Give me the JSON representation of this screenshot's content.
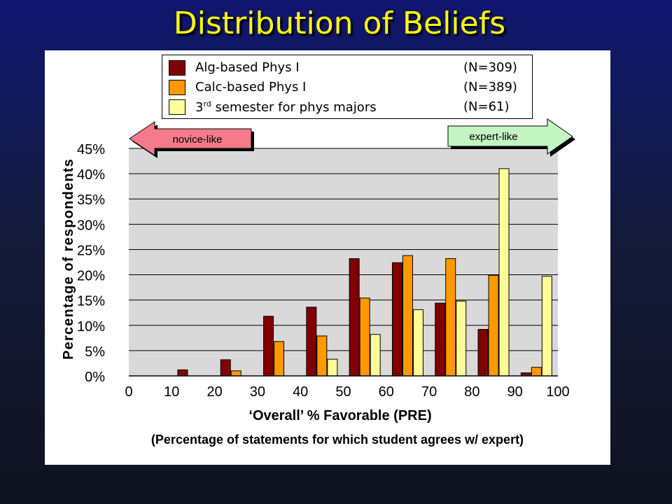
{
  "slide_title": "Distribution of Beliefs",
  "arrows": {
    "left_label": "novice-like",
    "right_label": "expert-like",
    "left_color": "#f57b8a",
    "right_color": "#c3f5c3"
  },
  "legend": [
    {
      "label_main": "Alg-based Phys I",
      "label_sup": "",
      "label_rest": "",
      "n": "(N=309)",
      "color": "#800000"
    },
    {
      "label_main": "Calc-based Phys I",
      "label_sup": "",
      "label_rest": "",
      "n": "(N=389)",
      "color": "#ff9900"
    },
    {
      "label_main": "3",
      "label_sup": "rd",
      "label_rest": " semester for phys majors",
      "n": "(N=61)",
      "color": "#ffff99"
    }
  ],
  "chart_data": {
    "type": "bar",
    "title": "",
    "xlabel": "‘Overall’ % Favorable (PRE)",
    "xlabel_note": "(Percentage of statements for which student agrees w/ expert)",
    "ylabel": "Percentage of respondents",
    "xlim": [
      0,
      100
    ],
    "ylim": [
      0,
      45
    ],
    "x_ticks": [
      "0",
      "10",
      "20",
      "30",
      "40",
      "50",
      "60",
      "70",
      "80",
      "90",
      "100"
    ],
    "y_ticks": [
      "0%",
      "5%",
      "10%",
      "15%",
      "20%",
      "25%",
      "30%",
      "35%",
      "40%",
      "45%"
    ],
    "bin_centers": [
      15,
      25,
      35,
      45,
      55,
      65,
      75,
      85,
      95
    ],
    "grid": "horizontal",
    "plot_bg": "#d9d9d9",
    "series": [
      {
        "name": "Alg-based Phys I",
        "color": "#800000",
        "values": [
          1.2,
          3.2,
          11.8,
          13.6,
          23.2,
          22.4,
          14.4,
          9.2,
          0.6
        ]
      },
      {
        "name": "Calc-based Phys I",
        "color": "#ff9900",
        "values": [
          0,
          1.0,
          6.8,
          7.9,
          15.4,
          23.8,
          23.2,
          19.9,
          1.7
        ]
      },
      {
        "name": "3rd semester for phys majors",
        "color": "#ffff99",
        "values": [
          0,
          0,
          0,
          3.3,
          8.2,
          13.1,
          14.8,
          41.0,
          19.7
        ]
      }
    ]
  }
}
